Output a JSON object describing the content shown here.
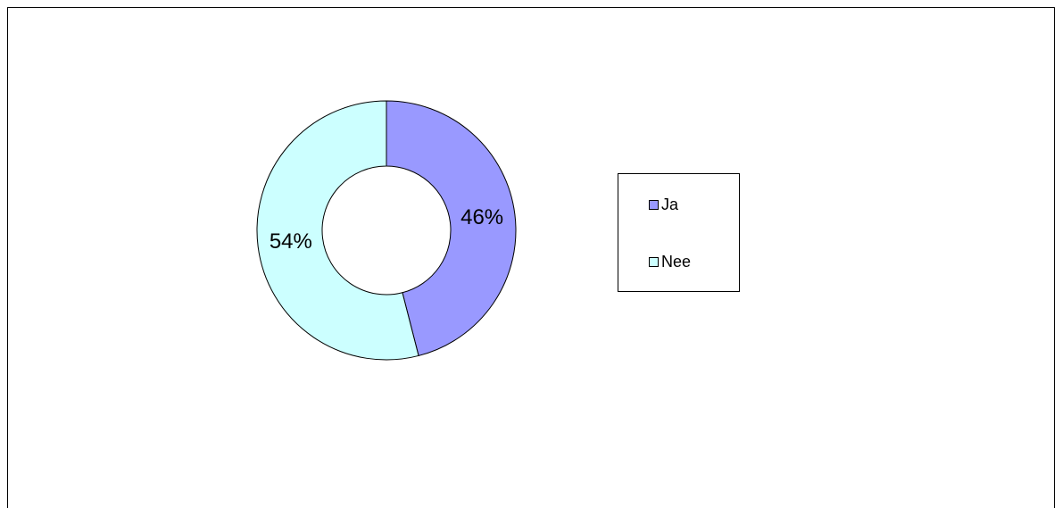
{
  "chart_data": {
    "type": "donut",
    "categories": [
      "Ja",
      "Nee"
    ],
    "series": [
      {
        "values": [
          46,
          54
        ],
        "value_labels": [
          "46%",
          "54%"
        ],
        "colors": [
          "#9999ff",
          "#ccffff"
        ]
      }
    ],
    "legend": "right"
  }
}
